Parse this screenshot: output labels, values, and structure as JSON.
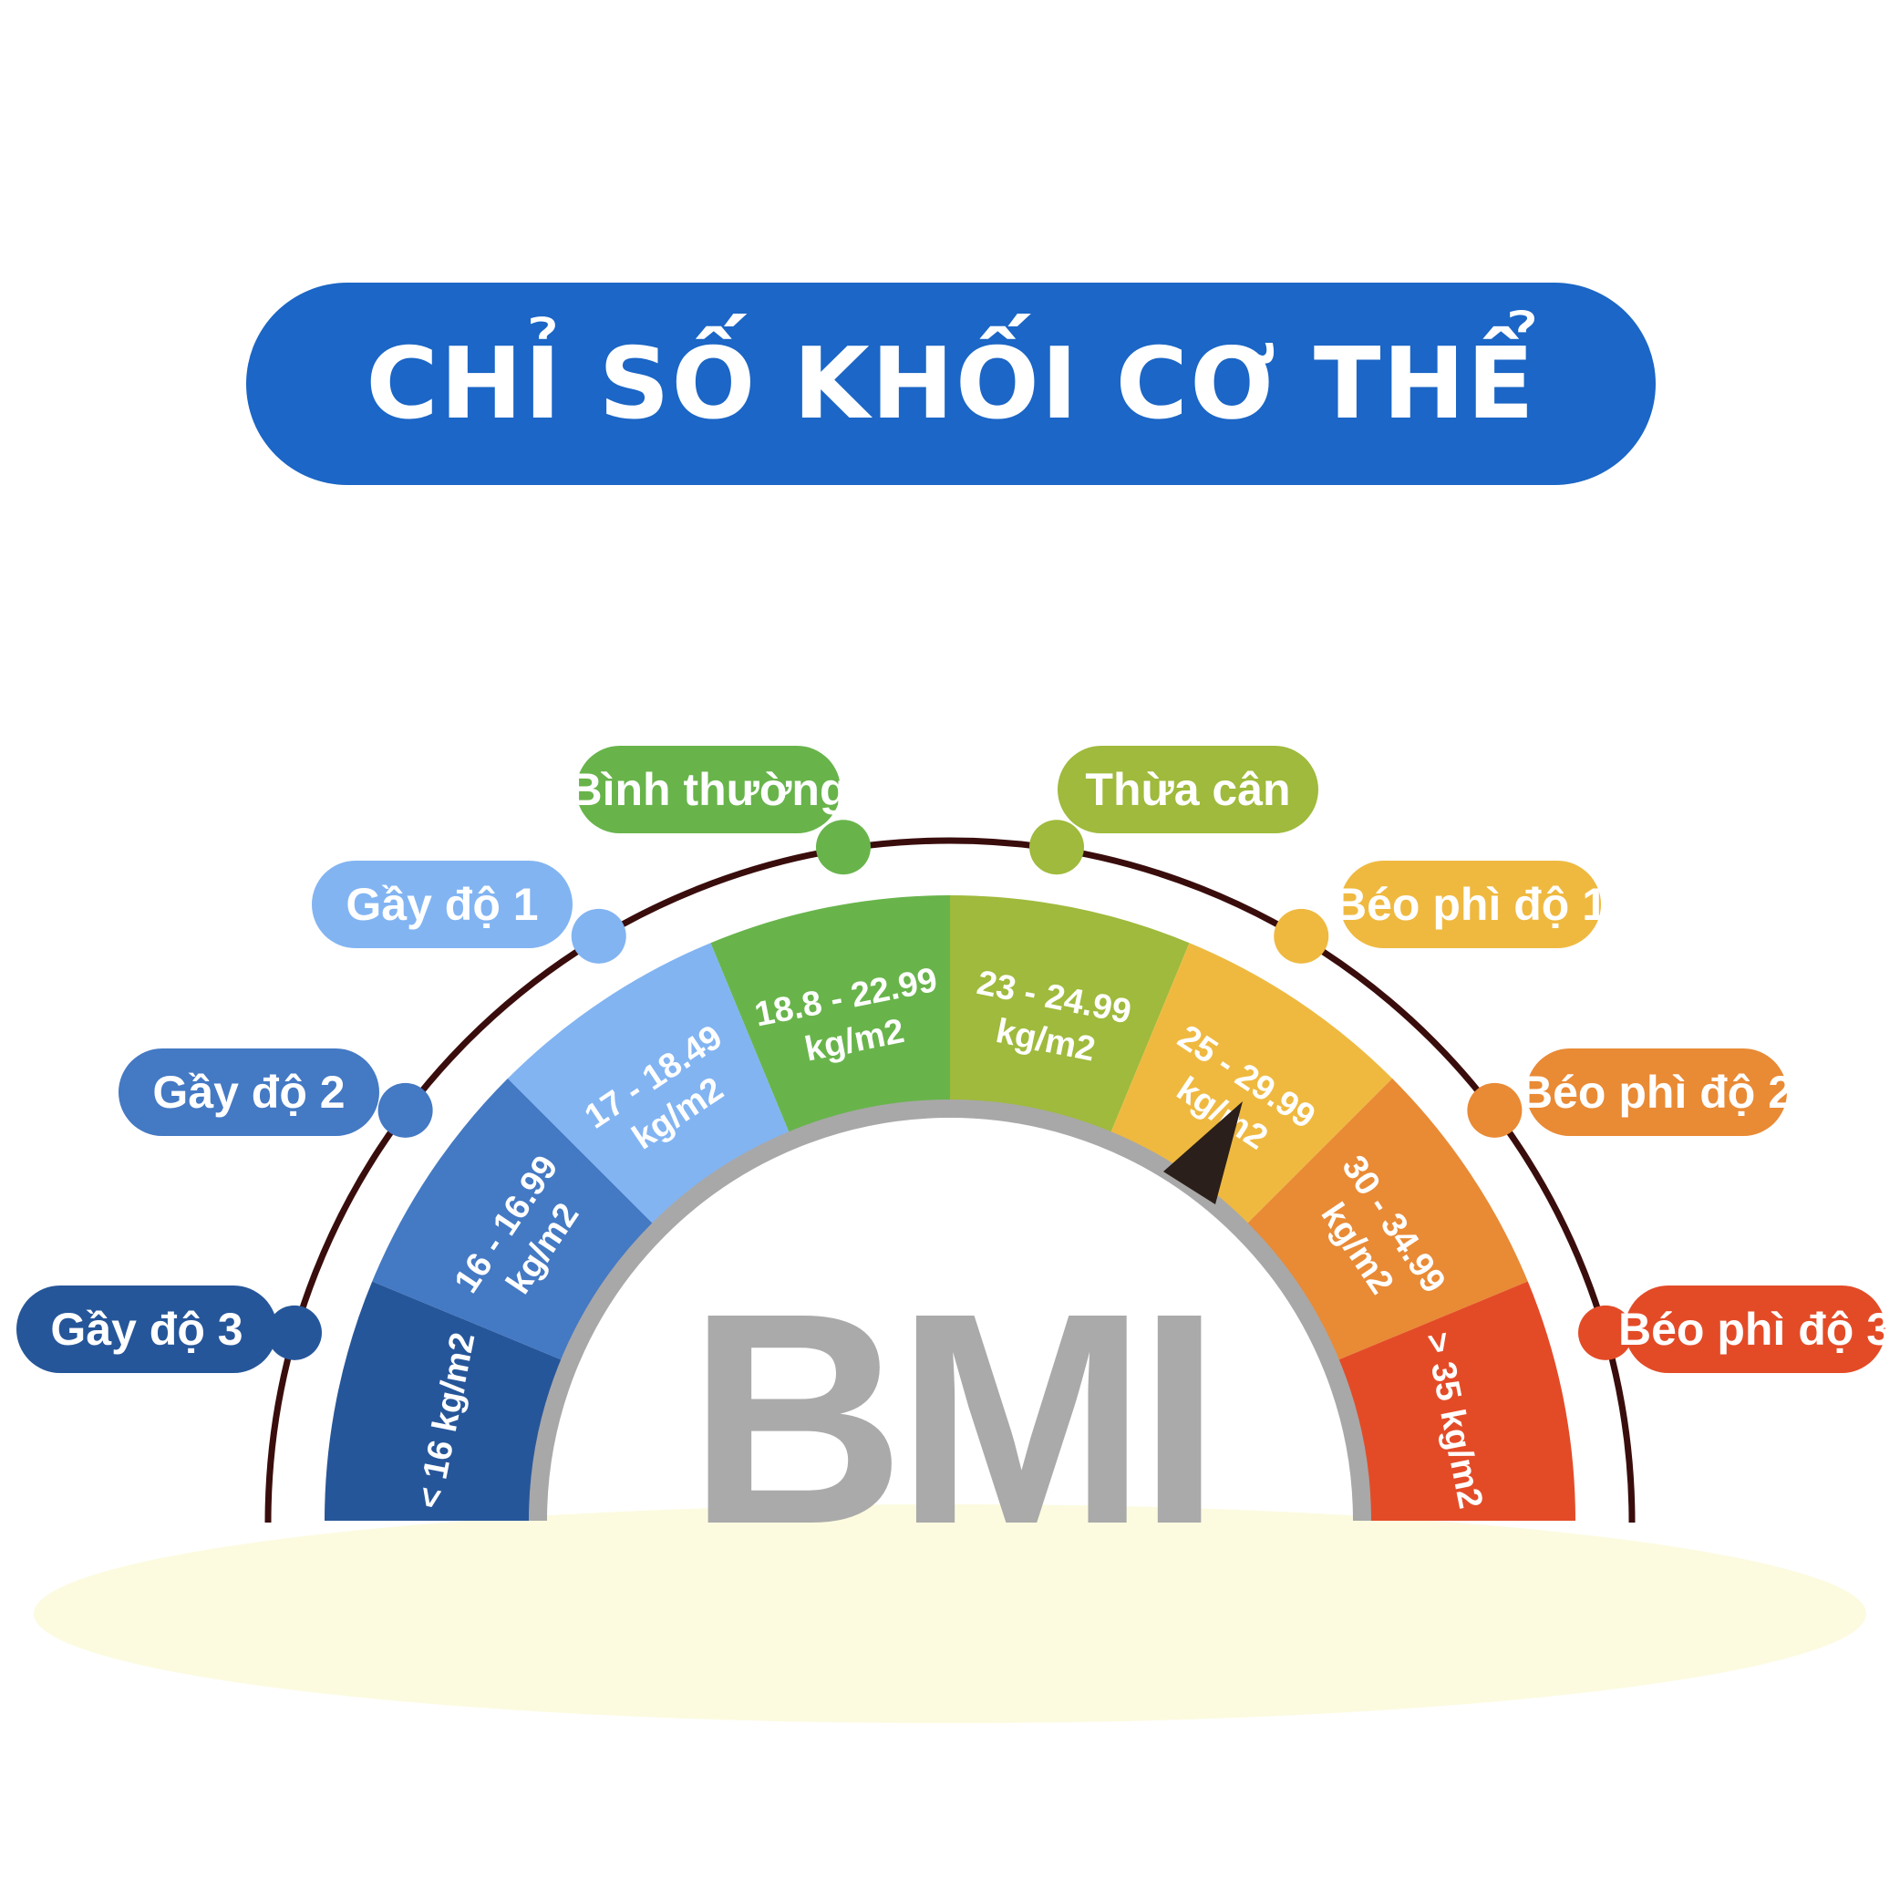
{
  "title": "CHỈ SỐ KHỐI CƠ THỂ",
  "center_text": "BMI",
  "categories": [
    {
      "label": "Gầy độ 3",
      "range": "< 16 kg/m2",
      "color": "#26569a"
    },
    {
      "label": "Gầy độ 2",
      "range": "16 - 16.99 kg/m2",
      "color": "#4479c4"
    },
    {
      "label": "Gầy độ 1",
      "range": "17 - 18.49 kg/m2",
      "color": "#82b4f2"
    },
    {
      "label": "Bình thường",
      "range": "18.8 - 22.99 kg/m2",
      "color": "#68b44b"
    },
    {
      "label": "Thừa cân",
      "range": "23 - 24.99 kg/m2",
      "color": "#9fba3c"
    },
    {
      "label": "Béo phì độ 1",
      "range": "25 - 29.99 kg/m2",
      "color": "#efb940"
    },
    {
      "label": "Béo phì độ 2",
      "range": "30 - 34.99 kg/m2",
      "color": "#e98a35"
    },
    {
      "label": "Béo phì độ 3",
      "range": "> 35 kg/m2",
      "color": "#e34b27"
    }
  ],
  "colors": {
    "title_bg": "#1b66c6",
    "outer_arc": "#3a0d0d",
    "inner_ring": "#a8a8a8",
    "bmi_text": "#aaaaaa",
    "needle": "#2a1f1a",
    "ground": "#fcfbe0"
  },
  "needle_category": "Béo phì độ 1"
}
